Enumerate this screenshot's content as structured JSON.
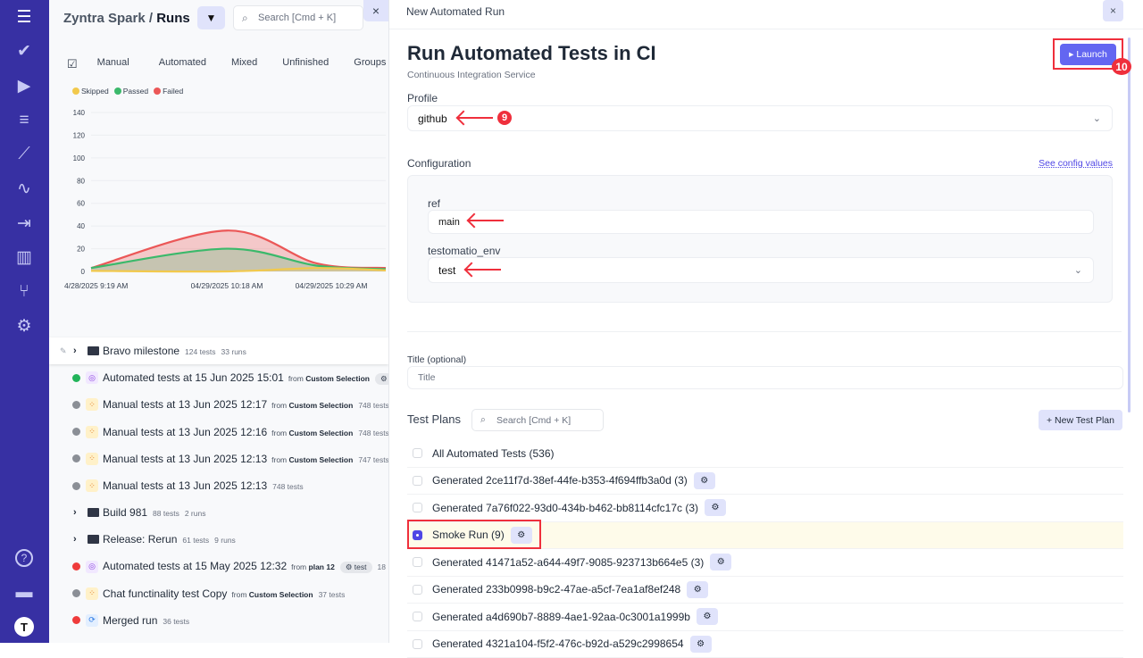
{
  "sidebar": {
    "items": [
      {
        "icon": "menu-icon",
        "glyph": "☰"
      },
      {
        "icon": "check-icon",
        "glyph": "✔"
      },
      {
        "icon": "play-circle-icon",
        "glyph": "▶"
      },
      {
        "icon": "checklist-icon",
        "glyph": "≡"
      },
      {
        "icon": "steps-icon",
        "glyph": "⟋"
      },
      {
        "icon": "pulse-icon",
        "glyph": "∿"
      },
      {
        "icon": "import-icon",
        "glyph": "⇥"
      },
      {
        "icon": "analytics-icon",
        "glyph": "▥"
      },
      {
        "icon": "branch-icon",
        "glyph": "⑂"
      },
      {
        "icon": "settings-icon",
        "glyph": "⚙"
      }
    ],
    "bottom": [
      {
        "icon": "help-icon",
        "glyph": "?"
      },
      {
        "icon": "folder-icon",
        "glyph": "▬"
      },
      {
        "icon": "user-avatar-icon",
        "glyph": "T"
      }
    ]
  },
  "left": {
    "project": "Zyntra Spark",
    "separator": "/",
    "page": "Runs",
    "search_placeholder": "Search [Cmd + K]",
    "close": "×",
    "tabs": [
      "Manual",
      "Automated",
      "Mixed",
      "Unfinished",
      "Groups"
    ],
    "legend": [
      {
        "label": "Skipped",
        "color": "#f2c94c"
      },
      {
        "label": "Passed",
        "color": "#3bb96b"
      },
      {
        "label": "Failed",
        "color": "#eb5757"
      }
    ],
    "runs": [
      {
        "kind": "folder",
        "title": "Bravo milestone",
        "tests": "124 tests",
        "runs": "33 runs",
        "pinned": true
      },
      {
        "kind": "run",
        "status": "passed",
        "type": "automated",
        "title": "Automated tests at 15 Jun 2025 15:01",
        "from": "from",
        "source": "Custom Selection",
        "pill": "⚙"
      },
      {
        "kind": "run",
        "status": "unfinished",
        "type": "manual",
        "title": "Manual tests at 13 Jun 2025 12:17",
        "from": "from",
        "source": "Custom Selection",
        "tests": "748 tests"
      },
      {
        "kind": "run",
        "status": "unfinished",
        "type": "manual",
        "title": "Manual tests at 13 Jun 2025 12:16",
        "from": "from",
        "source": "Custom Selection",
        "tests": "748 tests"
      },
      {
        "kind": "run",
        "status": "unfinished",
        "type": "manual",
        "title": "Manual tests at 13 Jun 2025 12:13",
        "from": "from",
        "source": "Custom Selection",
        "tests": "747 tests"
      },
      {
        "kind": "run",
        "status": "unfinished",
        "type": "manual",
        "title": "Manual tests at 13 Jun 2025 12:13",
        "tests": "748 tests"
      },
      {
        "kind": "folder",
        "title": "Build 981",
        "tests": "88 tests",
        "runs": "2 runs"
      },
      {
        "kind": "folder",
        "title": "Release: Rerun",
        "tests": "61 tests",
        "runs": "9 runs"
      },
      {
        "kind": "run",
        "status": "failed",
        "type": "automated",
        "title": "Automated tests at 15 May 2025 12:32",
        "from": "from",
        "source": "plan 12",
        "pill": "⚙ test",
        "tests": "18"
      },
      {
        "kind": "run",
        "status": "unfinished",
        "type": "manual",
        "title": "Chat functinality test Copy",
        "from": "from",
        "source": "Custom Selection",
        "tests": "37 tests"
      },
      {
        "kind": "run",
        "status": "failed",
        "type": "merged",
        "title": "Merged run",
        "tests": "36 tests"
      }
    ]
  },
  "chart_data": {
    "type": "area",
    "x": [
      "4/28/2025 9:19 AM",
      "04/29/2025 10:18 AM",
      "04/29/2025 10:29 AM",
      ""
    ],
    "yticks": [
      0,
      20,
      40,
      60,
      80,
      100,
      120,
      140
    ],
    "ylim": [
      0,
      140
    ],
    "grid": true,
    "legend": "top-left",
    "series": [
      {
        "name": "Failed",
        "color": "#eb5757",
        "values": [
          3,
          36,
          7,
          3
        ]
      },
      {
        "name": "Passed",
        "color": "#3bb96b",
        "values": [
          3,
          20,
          5,
          2
        ]
      },
      {
        "name": "Skipped",
        "color": "#f2c94c",
        "values": [
          0.5,
          0,
          3,
          1
        ]
      }
    ]
  },
  "modal": {
    "header": "New Automated Run",
    "close": "×",
    "title": "Run Automated Tests in CI",
    "subtitle": "Continuous Integration Service",
    "launch": "▸ Launch",
    "profile_label": "Profile",
    "profile_value": "github",
    "configuration_label": "Configuration",
    "see_config": "See config values",
    "ref_label": "ref",
    "ref_value": "main",
    "env_label": "testomatio_env",
    "env_value": "test",
    "title_label": "Title (optional)",
    "title_placeholder": "Title",
    "test_plans_label": "Test Plans",
    "tp_search_placeholder": "Search [Cmd + K]",
    "new_plan": "+ New Test Plan",
    "plans": [
      {
        "name": "All Automated Tests (536)",
        "gear": false,
        "checked": false
      },
      {
        "name": "Generated 2ce11f7d-38ef-44fe-b353-4f694ffb3a0d (3)",
        "gear": true,
        "checked": false
      },
      {
        "name": "Generated 7a76f022-93d0-434b-b462-bb8114cfc17c (3)",
        "gear": true,
        "checked": false
      },
      {
        "name": "Smoke Run (9)",
        "gear": true,
        "checked": true
      },
      {
        "name": "Generated 41471a52-a644-49f7-9085-923713b664e5 (3)",
        "gear": true,
        "checked": false
      },
      {
        "name": "Generated 233b0998-b9c2-47ae-a5cf-7ea1af8ef248",
        "gear": true,
        "checked": false
      },
      {
        "name": "Generated a4d690b7-8889-4ae1-92aa-0c3001a1999b",
        "gear": true,
        "checked": false
      },
      {
        "name": "Generated 4321a104-f5f2-476c-b92d-a529c2998654",
        "gear": true,
        "checked": false
      }
    ]
  },
  "annotations": {
    "step9": "9",
    "step10": "10",
    "accent": "#ef2f3c"
  }
}
